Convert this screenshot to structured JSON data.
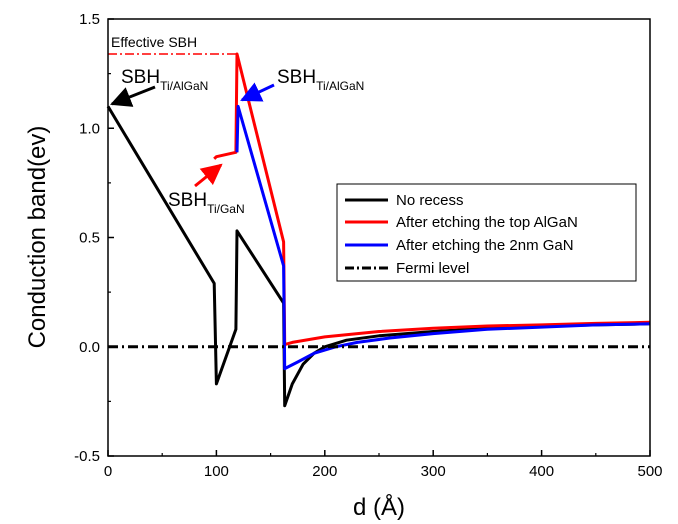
{
  "chart_data": {
    "type": "line",
    "xlabel": "d (Å)",
    "ylabel": "Conduction band(ev)",
    "xlim": [
      0,
      500
    ],
    "ylim": [
      -0.5,
      1.5
    ],
    "x_ticks": [
      0,
      100,
      200,
      300,
      400,
      500
    ],
    "x_tick_labels": [
      "0",
      "100",
      "200",
      "300",
      "400",
      "500"
    ],
    "y_ticks": [
      -0.5,
      0.0,
      0.5,
      1.0,
      1.5
    ],
    "y_tick_labels": [
      "-0.5",
      "0.0",
      "0.5",
      "1.0",
      "1.5"
    ],
    "grid": false,
    "legend_position": "center-right",
    "series": [
      {
        "name": "No recess",
        "color": "#000000",
        "dash": "solid",
        "points": [
          [
            0,
            1.1
          ],
          [
            98,
            0.29
          ],
          [
            100,
            -0.17
          ],
          [
            118,
            0.08
          ],
          [
            119,
            0.53
          ],
          [
            162,
            0.2
          ],
          [
            163,
            -0.27
          ],
          [
            170,
            -0.17
          ],
          [
            180,
            -0.08
          ],
          [
            190,
            -0.03
          ],
          [
            200,
            0.0
          ],
          [
            220,
            0.03
          ],
          [
            250,
            0.05
          ],
          [
            300,
            0.07
          ],
          [
            350,
            0.085
          ],
          [
            400,
            0.095
          ],
          [
            450,
            0.1
          ],
          [
            500,
            0.105
          ]
        ]
      },
      {
        "name": "After etching the top AlGaN",
        "color": "#ff0000",
        "dash": "solid",
        "points": [
          [
            98,
            0.86
          ],
          [
            100,
            0.87
          ],
          [
            118,
            0.89
          ],
          [
            119,
            1.34
          ],
          [
            162,
            0.48
          ],
          [
            163,
            0.01
          ],
          [
            170,
            0.02
          ],
          [
            200,
            0.045
          ],
          [
            250,
            0.07
          ],
          [
            300,
            0.085
          ],
          [
            350,
            0.095
          ],
          [
            400,
            0.1
          ],
          [
            450,
            0.107
          ],
          [
            500,
            0.112
          ]
        ]
      },
      {
        "name": "After etching the 2nm GaN",
        "color": "#0000ff",
        "dash": "solid",
        "points": [
          [
            119,
            0.89
          ],
          [
            120,
            1.1
          ],
          [
            162,
            0.37
          ],
          [
            163,
            -0.1
          ],
          [
            175,
            -0.07
          ],
          [
            190,
            -0.03
          ],
          [
            210,
            0.0
          ],
          [
            230,
            0.02
          ],
          [
            260,
            0.04
          ],
          [
            300,
            0.06
          ],
          [
            350,
            0.08
          ],
          [
            400,
            0.09
          ],
          [
            450,
            0.1
          ],
          [
            500,
            0.105
          ]
        ]
      },
      {
        "name": "Fermi level",
        "color": "#000000",
        "dash": "dash-dot",
        "points": [
          [
            0,
            0.0
          ],
          [
            500,
            0.0
          ]
        ]
      }
    ],
    "effective_sbh_line": {
      "x": [
        0,
        119
      ],
      "y": 1.34,
      "color": "#ff0000"
    },
    "annotations": [
      {
        "text": "Effective SBH"
      },
      {
        "main": "SBH",
        "sub": "Ti/AlGaN",
        "arrow_color": "#000000",
        "target": [
          0,
          1.1
        ]
      },
      {
        "main": "SBH",
        "sub": "Ti/AlGaN",
        "arrow_color": "#0000ff",
        "target": [
          119,
          1.1
        ]
      },
      {
        "main": "SBH",
        "sub": "Ti/GaN",
        "arrow_color": "#ff0000",
        "target": [
          105,
          0.87
        ]
      }
    ]
  }
}
